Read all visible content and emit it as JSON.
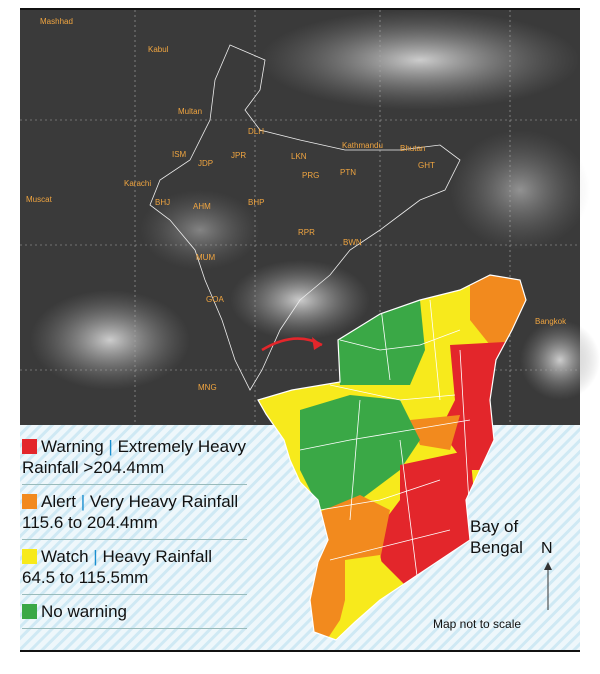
{
  "satellite": {
    "cities": [
      "Mashhad",
      "Kabul",
      "Multan",
      "Karachi",
      "Muscat",
      "ISM",
      "JDP",
      "JPR",
      "DLH",
      "LKN",
      "PRG",
      "PTN",
      "Kathmandu",
      "Bhutan",
      "GHT",
      "AHM",
      "BHP",
      "BHJ",
      "MUM",
      "GOA",
      "RPR",
      "BWN",
      "MNG",
      "Bangkok"
    ]
  },
  "legend": {
    "items": [
      {
        "label": "Warning",
        "separator": "|",
        "text": "Extremely Heavy Rainfall >204.4mm",
        "color": "#e3262b"
      },
      {
        "label": "Alert",
        "separator": "|",
        "text": "Very Heavy Rainfall 115.6 to 204.4mm",
        "color": "#f28a1e"
      },
      {
        "label": "Watch",
        "separator": "|",
        "text": "Heavy Rainfall 64.5 to 115.5mm",
        "color": "#f7ea1c"
      },
      {
        "label": "No warning",
        "color": "#3aa846"
      }
    ]
  },
  "map": {
    "sea_label": [
      "Bay of",
      "Bengal"
    ],
    "north": "N",
    "note": "Map not to scale"
  }
}
